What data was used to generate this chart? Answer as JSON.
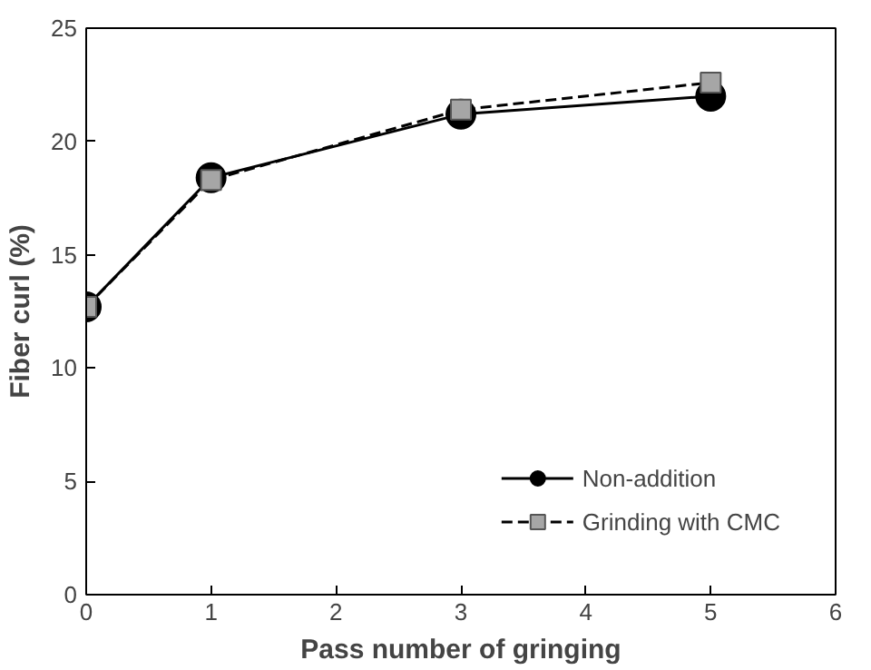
{
  "chart_data": {
    "type": "line",
    "xlabel": "Pass number of gringing",
    "ylabel": "Fiber curl (%)",
    "x": [
      0,
      1,
      3,
      5
    ],
    "series": [
      {
        "name": "Non-addition",
        "color": "#000000",
        "values": [
          12.7,
          18.4,
          21.2,
          22.0
        ],
        "marker": "circle",
        "line_style": "solid"
      },
      {
        "name": "Grinding with CMC",
        "color": "#a6a6a6",
        "values": [
          12.7,
          18.3,
          21.4,
          22.6
        ],
        "marker": "square",
        "line_style": "dashed"
      }
    ],
    "xlim": [
      0,
      6
    ],
    "xticks": [
      0,
      1,
      2,
      3,
      4,
      5,
      6
    ],
    "ylim": [
      0,
      25
    ],
    "yticks": [
      0,
      5,
      10,
      15,
      20,
      25
    ],
    "grid": false,
    "legend": "bottom right"
  }
}
